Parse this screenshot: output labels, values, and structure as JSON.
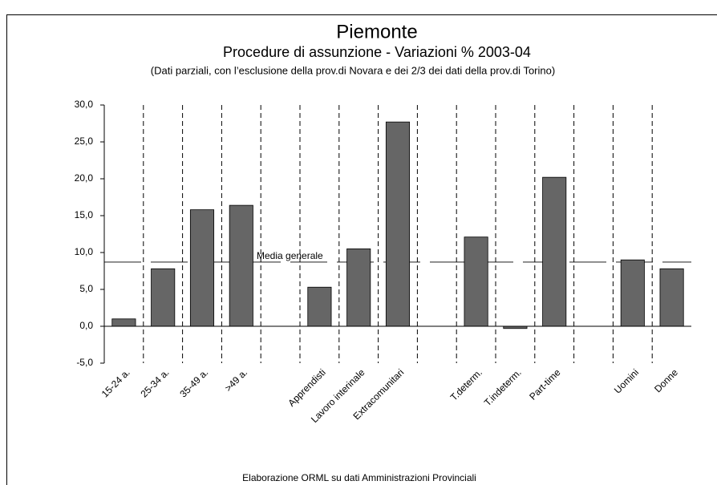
{
  "chart_data": {
    "type": "bar",
    "title": "Piemonte",
    "subtitle": "Procedure di assunzione - Variazioni % 2003-04",
    "note": "(Dati parziali, con l’esclusione della prov.di Novara e dei 2/3 dei dati della prov.di Torino)",
    "footer": "Elaborazione ORML su dati Amministrazioni Provinciali",
    "categories": [
      "15-24 a.",
      "25-34 a.",
      "35-49 a.",
      ">49 a.",
      null,
      "Apprendisti",
      "Lavoro interinale",
      "Extracomunitari",
      null,
      "T.determ.",
      "T.indeterm.",
      "Part-time",
      null,
      "Uomini",
      "Donne"
    ],
    "values": [
      1.0,
      7.8,
      15.8,
      16.4,
      null,
      5.3,
      10.5,
      27.7,
      null,
      12.1,
      -0.3,
      20.2,
      null,
      9.0,
      7.8
    ],
    "color": "#666666",
    "reference_line": {
      "label": "Media generale",
      "value": 8.7
    },
    "ylim": [
      -5,
      30
    ],
    "yticks": [
      {
        "value": -5,
        "label": "-5,0"
      },
      {
        "value": 0,
        "label": "0,0"
      },
      {
        "value": 5,
        "label": "5,0"
      },
      {
        "value": 10,
        "label": "10,0"
      },
      {
        "value": 15,
        "label": "15,0"
      },
      {
        "value": 20,
        "label": "20,0"
      },
      {
        "value": 25,
        "label": "25,0"
      },
      {
        "value": 30,
        "label": "30,0"
      }
    ],
    "grid": false
  }
}
